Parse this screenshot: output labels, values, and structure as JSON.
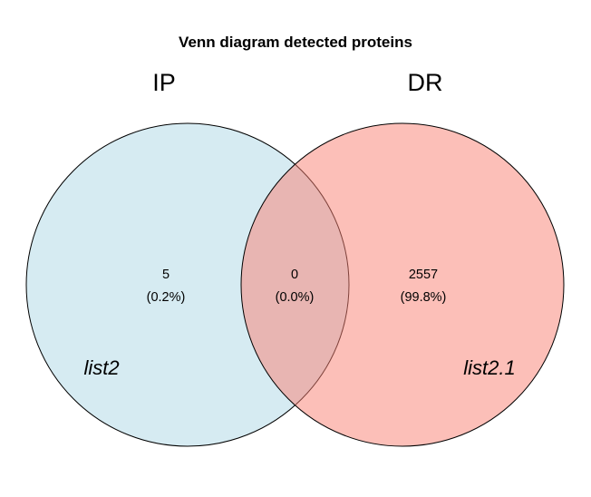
{
  "title": "Venn diagram detected proteins",
  "sets": [
    {
      "key": "left",
      "label": "IP",
      "category": "list2",
      "fill": "#add8e6",
      "stroke": "#000000"
    },
    {
      "key": "right",
      "label": "DR",
      "category": "list2.1",
      "fill": "#fa8072",
      "stroke": "#000000"
    }
  ],
  "regions": {
    "only_left": {
      "count": "5",
      "percent": "(0.2%)"
    },
    "both": {
      "count": "0",
      "percent": "(0.0%)"
    },
    "only_right": {
      "count": "2557",
      "percent": "(99.8%)"
    }
  }
}
